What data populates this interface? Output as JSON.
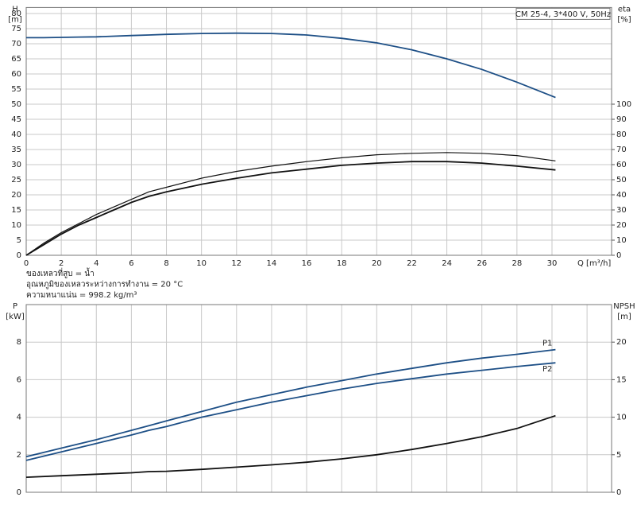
{
  "chart_data": [
    {
      "type": "line",
      "legend_box": "CM 25-4, 3*400 V, 50Hz",
      "ylabel": [
        "H",
        "[m]"
      ],
      "y2label": [
        "eta",
        "[%]"
      ],
      "xlabel": "Q [m³/h]",
      "notes": [
        "ของเหลวที่สูบ = น้ำ",
        "อุณหภูมิของเหลวระหว่างการทำงาน = 20 °C",
        "ความหนาแน่น = 998.2 kg/m³"
      ],
      "x": [
        0,
        1,
        2,
        3,
        4,
        5,
        6,
        7,
        8,
        10,
        12,
        14,
        16,
        18,
        20,
        22,
        24,
        26,
        28,
        30.2
      ],
      "xlim": [
        0,
        33.4
      ],
      "xticks": [
        0,
        2,
        4,
        6,
        8,
        10,
        12,
        14,
        16,
        18,
        20,
        22,
        24,
        26,
        28,
        30
      ],
      "ylim": [
        0,
        82
      ],
      "yticks": [
        0,
        5,
        10,
        15,
        20,
        25,
        30,
        35,
        40,
        45,
        50,
        55,
        60,
        65,
        70,
        75,
        80
      ],
      "y2lim": [
        0,
        164
      ],
      "y2ticks": [
        0,
        10,
        20,
        30,
        40,
        50,
        60,
        70,
        80,
        90,
        100
      ],
      "grid": true,
      "series": [
        {
          "color": "#1d4f86",
          "values": [
            72,
            72,
            72.1,
            72.2,
            72.3,
            72.5,
            72.7,
            72.9,
            73.1,
            73.4,
            73.5,
            73.4,
            72.9,
            71.8,
            70.3,
            68,
            65,
            61.5,
            57.3,
            52.2
          ]
        },
        {
          "color": "#111111",
          "axis": "y2",
          "values": [
            0,
            8,
            15,
            21,
            27,
            32,
            37,
            42,
            45,
            51,
            55.5,
            59,
            62,
            64.5,
            66.5,
            67.5,
            68,
            67.5,
            66,
            62.5
          ]
        },
        {
          "color": "#111111",
          "axis": "y2",
          "values": [
            0,
            7,
            14,
            20,
            25,
            30,
            35,
            39,
            42,
            47,
            51,
            54.5,
            57,
            59.5,
            61,
            62,
            62,
            61,
            59,
            56.5
          ]
        }
      ]
    },
    {
      "type": "line",
      "ylabel": [
        "P",
        "[kW]"
      ],
      "y2label": [
        "NPSH",
        "[m]"
      ],
      "x": [
        0,
        2,
        4,
        6,
        7,
        8,
        10,
        12,
        14,
        16,
        18,
        20,
        22,
        24,
        26,
        28,
        30.2
      ],
      "xlim": [
        0,
        33.4
      ],
      "xgrid": [
        0,
        2,
        4,
        6,
        8,
        10,
        12,
        14,
        16,
        18,
        20,
        22,
        24,
        26,
        28,
        30,
        32
      ],
      "ylim": [
        0,
        10
      ],
      "yticks": [
        0,
        2,
        4,
        6,
        8
      ],
      "y2lim": [
        0,
        25
      ],
      "y2ticks": [
        0,
        5,
        10,
        15,
        20
      ],
      "grid": true,
      "series": [
        {
          "name": "P1",
          "color": "#1d4f86",
          "values": [
            1.9,
            2.35,
            2.8,
            3.3,
            3.55,
            3.8,
            4.3,
            4.8,
            5.2,
            5.6,
            5.95,
            6.3,
            6.6,
            6.9,
            7.15,
            7.35,
            7.6
          ]
        },
        {
          "name": "P2",
          "color": "#1d4f86",
          "values": [
            1.7,
            2.15,
            2.6,
            3.05,
            3.3,
            3.5,
            4.0,
            4.4,
            4.8,
            5.15,
            5.5,
            5.8,
            6.05,
            6.3,
            6.5,
            6.7,
            6.9
          ]
        },
        {
          "color": "#111111",
          "axis": "y2",
          "values": [
            2.0,
            2.2,
            2.4,
            2.6,
            2.75,
            2.8,
            3.05,
            3.35,
            3.65,
            4.0,
            4.45,
            5.0,
            5.7,
            6.5,
            7.4,
            8.5,
            10.2
          ]
        }
      ]
    }
  ]
}
